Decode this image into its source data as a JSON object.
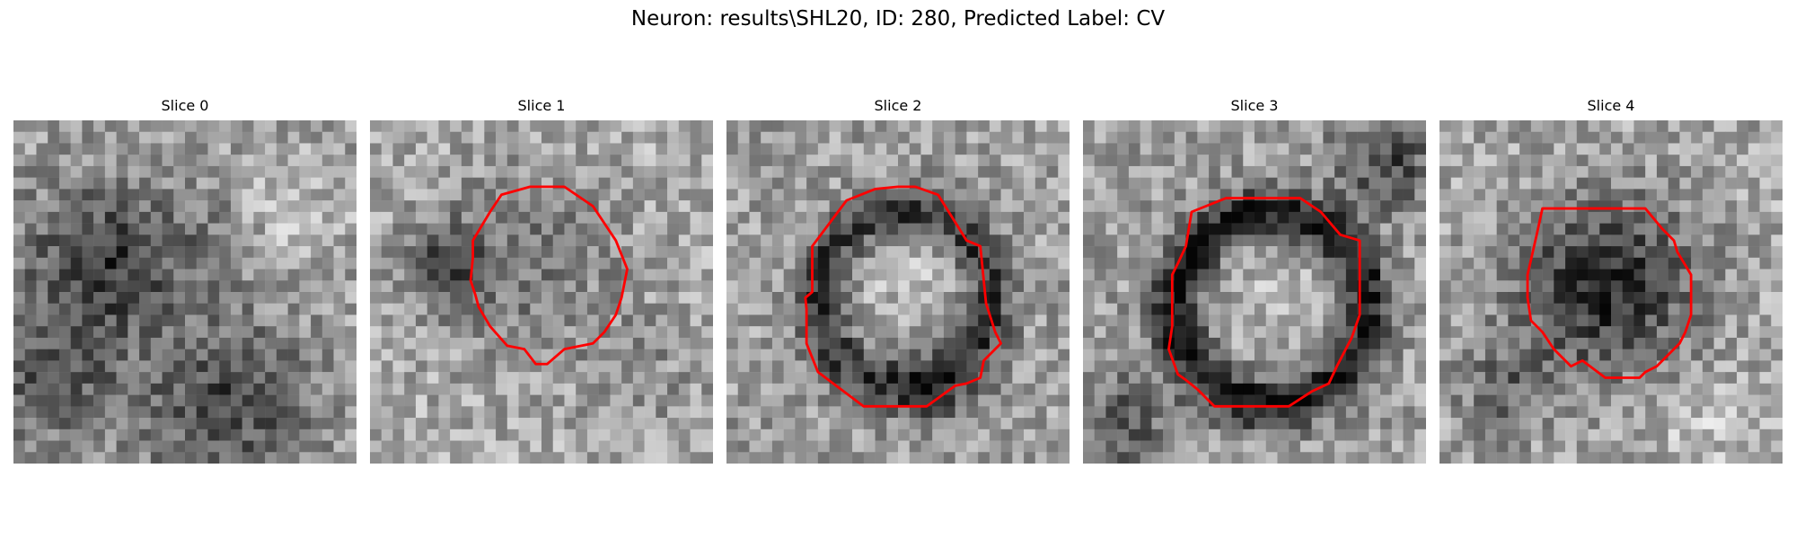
{
  "figure": {
    "title": "Neuron: results\\SHL20, ID: 280, Predicted Label: CV"
  },
  "panels": [
    {
      "title": "Slice 0",
      "has_contour": false,
      "contour_color": "#ff0000"
    },
    {
      "title": "Slice 1",
      "has_contour": true,
      "contour_color": "#ff0000"
    },
    {
      "title": "Slice 2",
      "has_contour": true,
      "contour_color": "#ff0000"
    },
    {
      "title": "Slice 3",
      "has_contour": true,
      "contour_color": "#ff0000"
    },
    {
      "title": "Slice 4",
      "has_contour": true,
      "contour_color": "#ff0000"
    }
  ],
  "colormap": "gray"
}
